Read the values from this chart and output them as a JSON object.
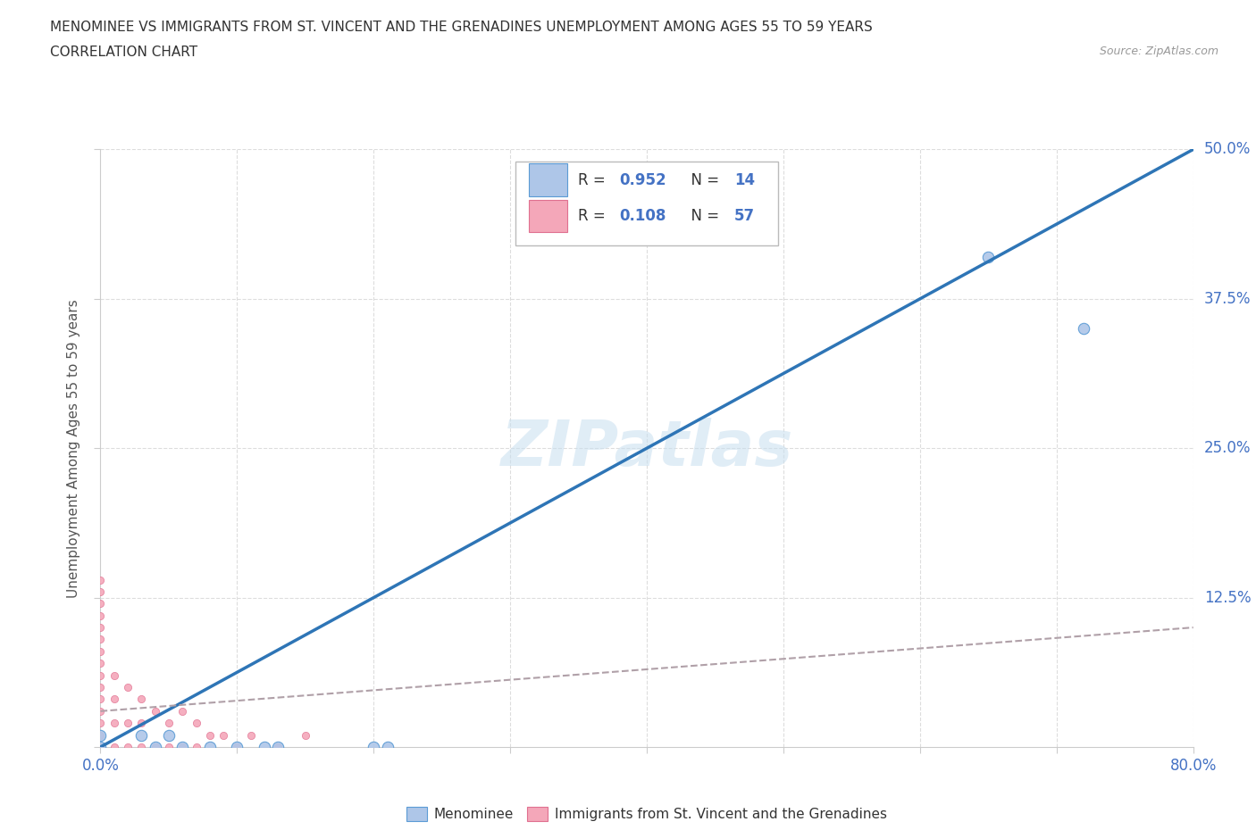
{
  "title_line1": "MENOMINEE VS IMMIGRANTS FROM ST. VINCENT AND THE GRENADINES UNEMPLOYMENT AMONG AGES 55 TO 59 YEARS",
  "title_line2": "CORRELATION CHART",
  "source_text": "Source: ZipAtlas.com",
  "ylabel": "Unemployment Among Ages 55 to 59 years",
  "xlim": [
    0.0,
    0.8
  ],
  "ylim": [
    0.0,
    0.5
  ],
  "blue_color": "#aec6e8",
  "blue_edge": "#5b9bd5",
  "pink_color": "#f4a7b9",
  "pink_edge": "#e07090",
  "blue_line_color": "#2e75b6",
  "pink_line_color": "#b0a0a8",
  "watermark": "ZIPatlas",
  "axis_color": "#cccccc",
  "grid_color": "#dddddd",
  "tick_color": "#4472c4",
  "blue_scatter_x": [
    0.0,
    0.0,
    0.03,
    0.04,
    0.05,
    0.06,
    0.08,
    0.1,
    0.12,
    0.13,
    0.2,
    0.21,
    0.65,
    0.72
  ],
  "blue_scatter_y": [
    0.0,
    0.01,
    0.01,
    0.0,
    0.01,
    0.0,
    0.0,
    0.0,
    0.0,
    0.0,
    0.0,
    0.0,
    0.41,
    0.35
  ],
  "blue_line_x": [
    0.0,
    0.8
  ],
  "blue_line_y": [
    0.0,
    0.5
  ],
  "pink_line_x": [
    0.0,
    0.8
  ],
  "pink_line_y": [
    0.03,
    0.1
  ],
  "pink_scatter_x": [
    0.0,
    0.0,
    0.0,
    0.0,
    0.0,
    0.0,
    0.0,
    0.0,
    0.0,
    0.0,
    0.0,
    0.0,
    0.0,
    0.0,
    0.0,
    0.01,
    0.01,
    0.01,
    0.01,
    0.02,
    0.02,
    0.02,
    0.03,
    0.03,
    0.03,
    0.04,
    0.04,
    0.05,
    0.05,
    0.06,
    0.06,
    0.07,
    0.07,
    0.08,
    0.09,
    0.1,
    0.11,
    0.13,
    0.15
  ],
  "pink_scatter_y": [
    0.0,
    0.01,
    0.02,
    0.03,
    0.04,
    0.05,
    0.06,
    0.07,
    0.08,
    0.09,
    0.1,
    0.11,
    0.12,
    0.13,
    0.14,
    0.0,
    0.02,
    0.04,
    0.06,
    0.0,
    0.02,
    0.05,
    0.0,
    0.02,
    0.04,
    0.0,
    0.03,
    0.0,
    0.02,
    0.0,
    0.03,
    0.0,
    0.02,
    0.01,
    0.01,
    0.0,
    0.01,
    0.0,
    0.01
  ]
}
